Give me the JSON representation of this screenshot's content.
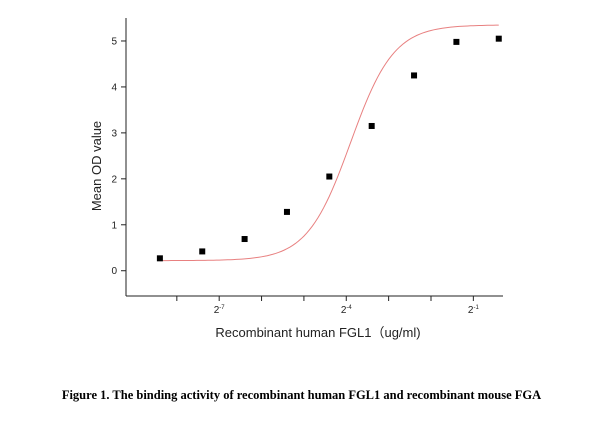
{
  "caption": "Figure 1. The binding activity of recombinant human FGL1 and recombinant mouse FGA",
  "colors": {
    "axis": "#222222",
    "curve": "#e88080",
    "points": "#000000"
  },
  "chart_data": {
    "type": "scatter",
    "xlabel": "Recombinant human  FGL1（ug/ml)",
    "ylabel": "Mean OD value",
    "x_scale": "log2",
    "xlim": [
      -9.2,
      -0.3
    ],
    "ylim": [
      -0.55,
      5.5
    ],
    "grid": false,
    "legend": "none",
    "x_ticks": [
      {
        "value": -8,
        "label": ""
      },
      {
        "value": -7,
        "label": "2",
        "sup": "-7"
      },
      {
        "value": -6,
        "label": ""
      },
      {
        "value": -5,
        "label": ""
      },
      {
        "value": -4,
        "label": "2",
        "sup": "-4"
      },
      {
        "value": -3,
        "label": ""
      },
      {
        "value": -2,
        "label": ""
      },
      {
        "value": -1,
        "label": "2",
        "sup": "-1"
      }
    ],
    "y_ticks": [
      0,
      1,
      2,
      3,
      4,
      5
    ],
    "series": [
      {
        "x": [
          -8.4,
          -7.4,
          -6.4,
          -5.4,
          -4.4,
          -3.4,
          -2.4,
          -1.4,
          -0.4
        ],
        "y": [
          0.27,
          0.42,
          0.69,
          1.28,
          2.05,
          3.15,
          4.25,
          4.98,
          5.05
        ]
      }
    ],
    "fit_curve": {
      "model": "4PL",
      "bottom": 0.22,
      "top": 5.35,
      "log_ec50": -3.9,
      "hill": 0.85,
      "x_range": [
        -8.4,
        -0.4
      ]
    }
  }
}
